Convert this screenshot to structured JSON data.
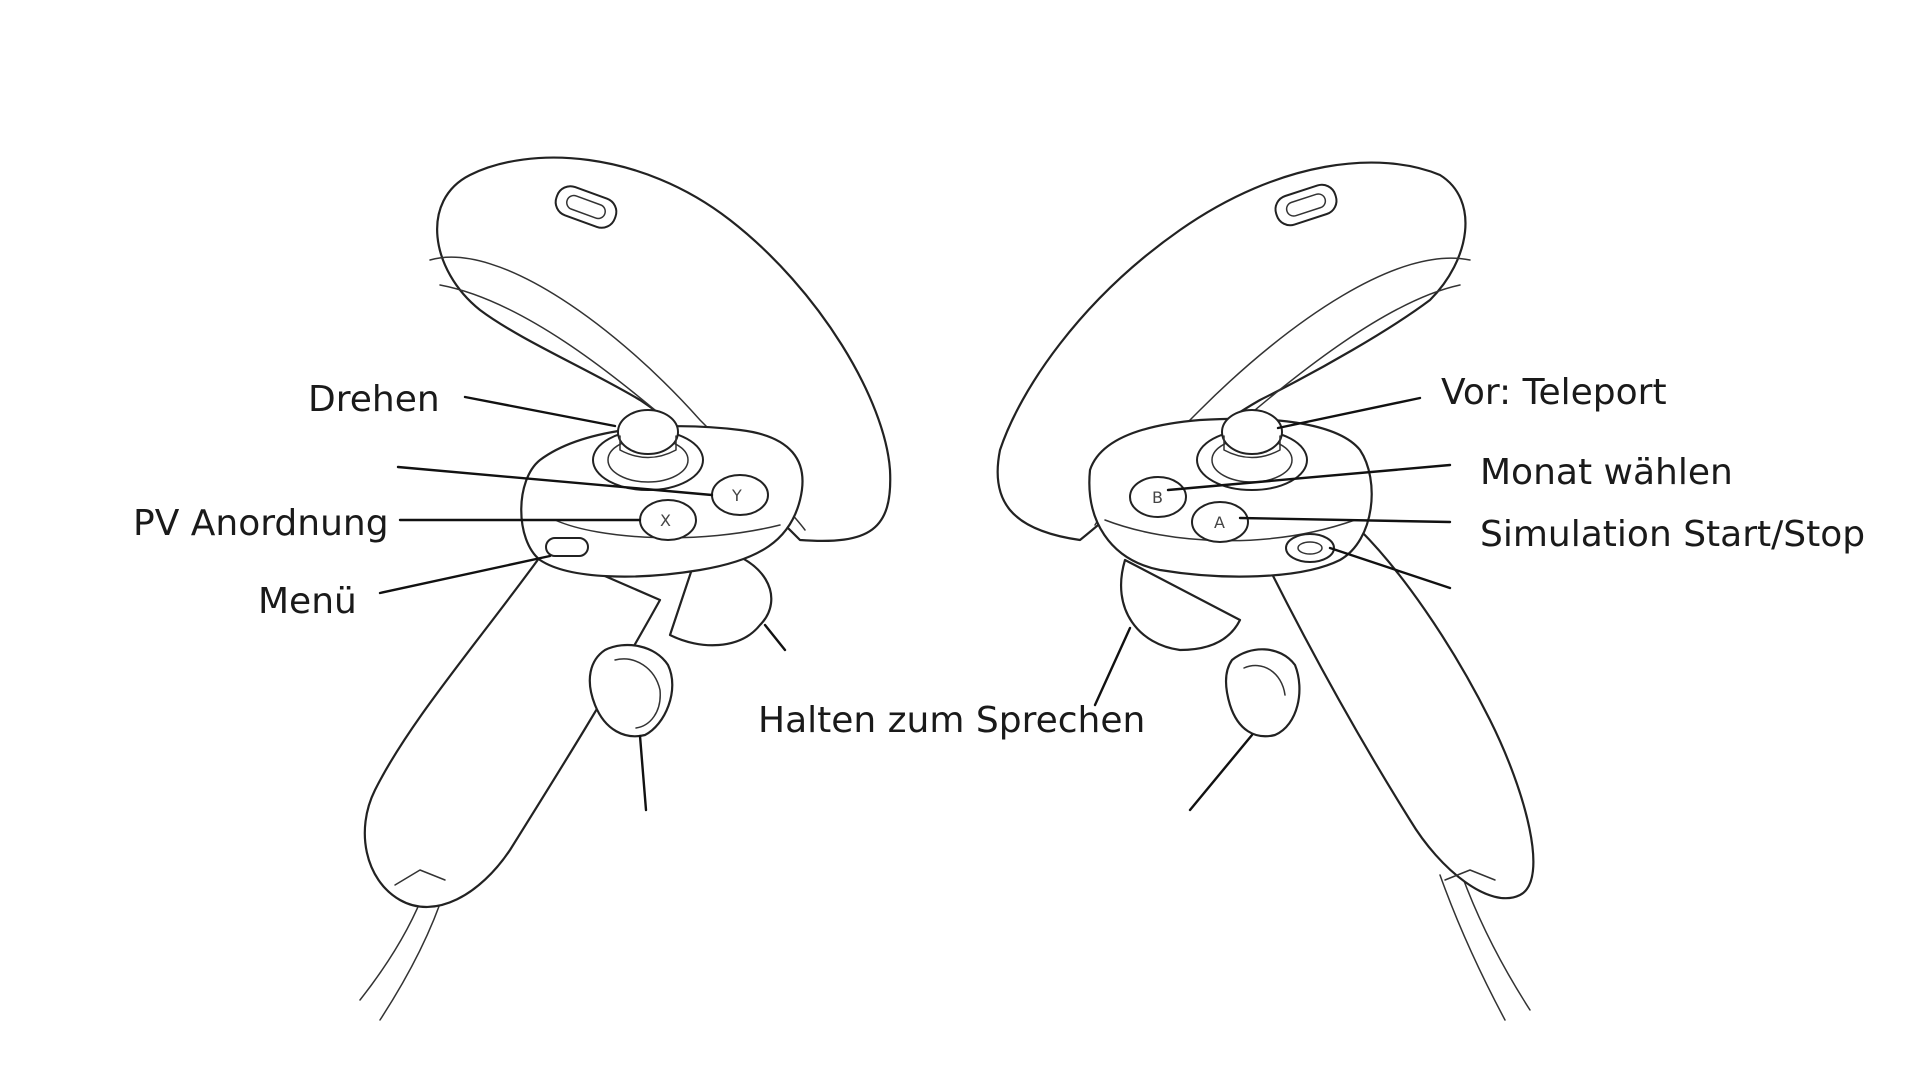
{
  "labels": {
    "drehen": "Drehen",
    "pv_anordnung": "PV Anordnung",
    "menu": "Menü",
    "halten_zum_sprechen": "Halten zum Sprechen",
    "vor_teleport": "Vor: Teleport",
    "monat_waehlen": "Monat wählen",
    "simulation": "Simulation Start/Stop"
  },
  "left_controller": {
    "buttons": [
      "X",
      "Y"
    ]
  },
  "right_controller": {
    "buttons": [
      "A",
      "B"
    ]
  },
  "colors": {
    "line": "#222222",
    "background": "#ffffff"
  }
}
